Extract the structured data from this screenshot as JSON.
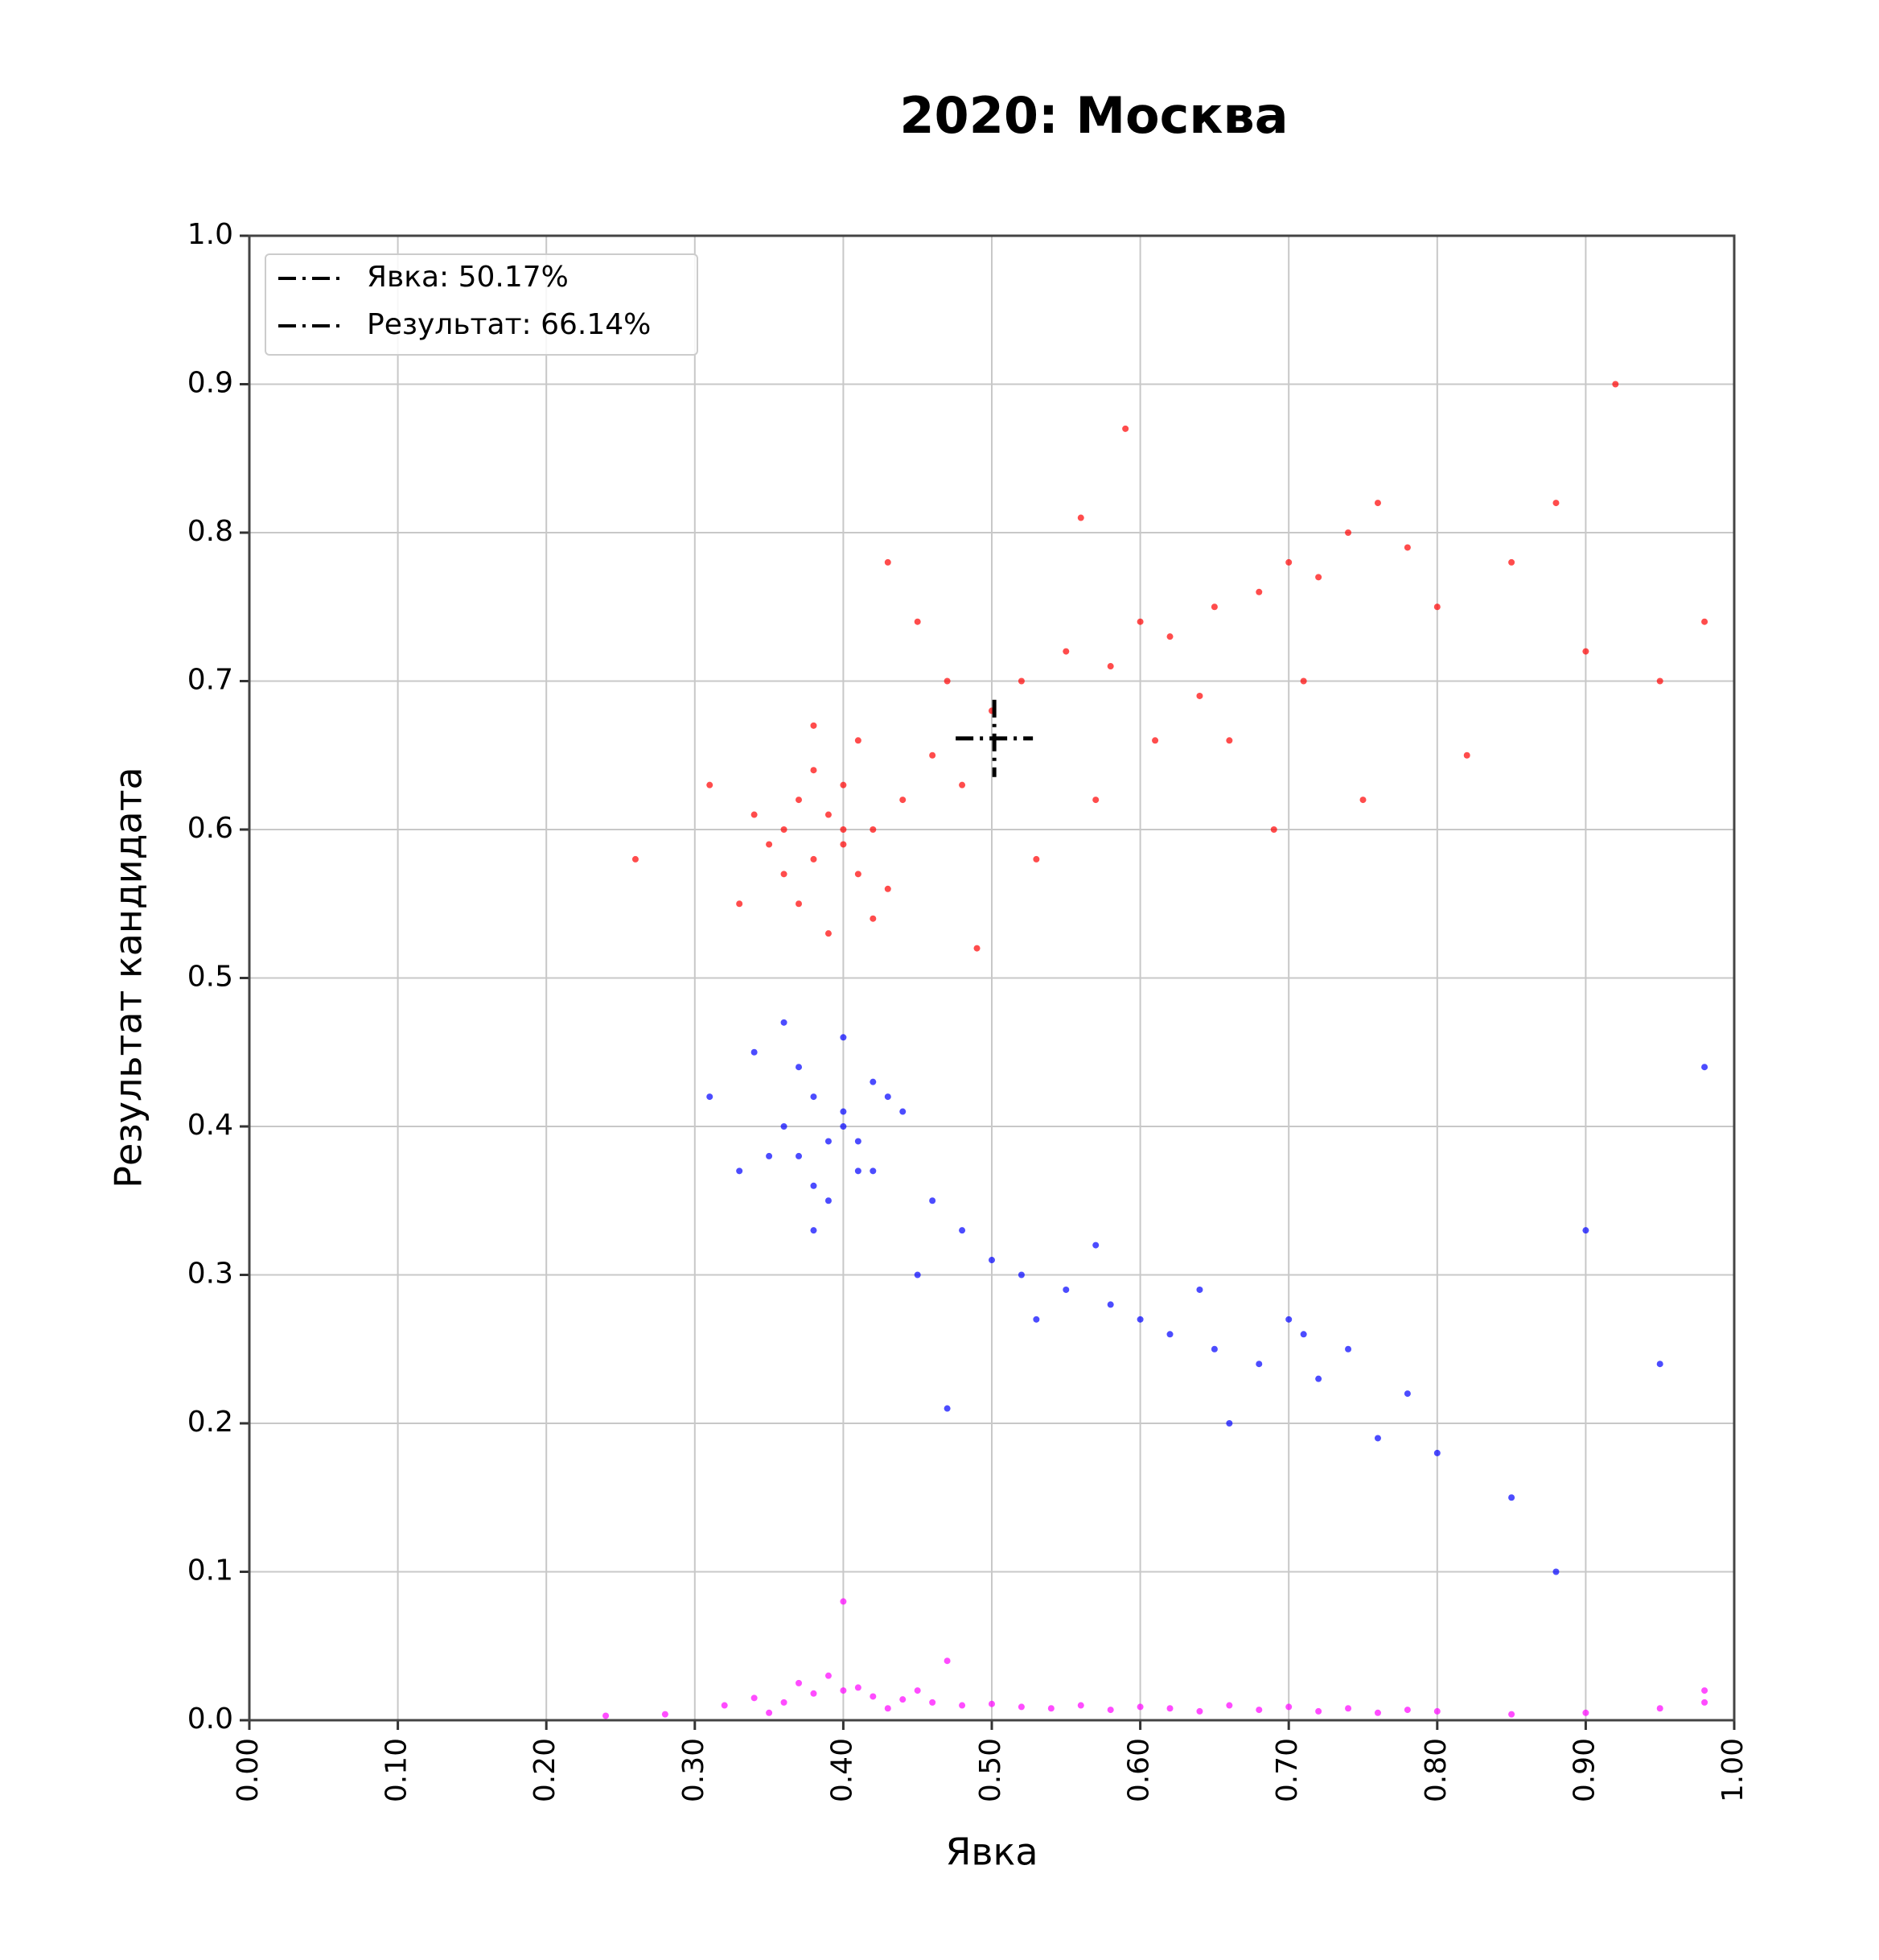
{
  "chart_data": {
    "type": "scatter",
    "title": "2020: Москва",
    "x_label": "Явка",
    "y_label": "Результат кандидата",
    "xlim": [
      0,
      1
    ],
    "ylim": [
      0,
      1
    ],
    "xticks": [
      {
        "value": 0,
        "label": "0.00"
      },
      {
        "value": 0.1,
        "label": "0.10"
      },
      {
        "value": 0.2,
        "label": "0.20"
      },
      {
        "value": 0.3,
        "label": "0.30"
      },
      {
        "value": 0.4,
        "label": "0.40"
      },
      {
        "value": 0.5,
        "label": "0.50"
      },
      {
        "value": 0.6,
        "label": "0.60"
      },
      {
        "value": 0.7,
        "label": "0.70"
      },
      {
        "value": 0.8,
        "label": "0.80"
      },
      {
        "value": 0.9,
        "label": "0.90"
      },
      {
        "value": 1,
        "label": "1.00"
      }
    ],
    "yticks": [
      {
        "value": 0,
        "label": "0.0"
      },
      0.1,
      0.2,
      0.3,
      0.4,
      0.5,
      0.6,
      0.7,
      0.8,
      0.9,
      {
        "value": 1,
        "label": "1.0"
      }
    ],
    "grid": true,
    "legend": "upper left",
    "reference": {
      "x": 0.5017,
      "y": 0.6614,
      "color": "#000000",
      "labels": [
        "Явка: 50.17%",
        "Результат: 66.14%"
      ]
    },
    "series": [
      {
        "color": "#ff0000",
        "x": [
          0.36,
          0.37,
          0.38,
          0.39,
          0.4,
          0.41,
          0.42,
          0.38,
          0.37,
          0.4,
          0.43,
          0.35,
          0.34,
          0.39,
          0.41,
          0.44,
          0.36,
          0.38,
          0.42,
          0.4,
          0.46,
          0.48,
          0.5,
          0.52,
          0.55,
          0.58,
          0.6,
          0.62,
          0.65,
          0.68,
          0.7,
          0.72,
          0.74,
          0.76,
          0.78,
          0.64,
          0.57,
          0.53,
          0.47,
          0.45,
          0.33,
          0.31,
          0.66,
          0.71,
          0.8,
          0.85,
          0.9,
          0.95,
          0.98,
          0.88,
          0.69,
          0.61,
          0.56,
          0.49,
          0.43,
          0.82,
          0.92,
          0.26,
          0.59,
          0.75
        ],
        "values": [
          0.6,
          0.62,
          0.58,
          0.61,
          0.59,
          0.57,
          0.6,
          0.64,
          0.55,
          0.63,
          0.56,
          0.59,
          0.61,
          0.53,
          0.66,
          0.62,
          0.57,
          0.67,
          0.54,
          0.6,
          0.65,
          0.63,
          0.68,
          0.7,
          0.72,
          0.71,
          0.74,
          0.73,
          0.75,
          0.76,
          0.78,
          0.77,
          0.8,
          0.82,
          0.79,
          0.69,
          0.62,
          0.58,
          0.7,
          0.74,
          0.55,
          0.63,
          0.66,
          0.7,
          0.75,
          0.78,
          0.72,
          0.7,
          0.74,
          0.82,
          0.6,
          0.66,
          0.81,
          0.52,
          0.78,
          0.65,
          0.9,
          0.58,
          0.87,
          0.62
        ]
      },
      {
        "color": "#0000ff",
        "x": [
          0.36,
          0.37,
          0.38,
          0.39,
          0.4,
          0.41,
          0.42,
          0.38,
          0.37,
          0.4,
          0.43,
          0.35,
          0.34,
          0.39,
          0.41,
          0.44,
          0.36,
          0.38,
          0.42,
          0.4,
          0.46,
          0.48,
          0.5,
          0.52,
          0.55,
          0.58,
          0.6,
          0.62,
          0.65,
          0.68,
          0.7,
          0.72,
          0.74,
          0.76,
          0.78,
          0.64,
          0.57,
          0.53,
          0.47,
          0.45,
          0.33,
          0.31,
          0.66,
          0.71,
          0.8,
          0.85,
          0.9,
          0.95,
          0.98,
          0.88
        ],
        "values": [
          0.4,
          0.38,
          0.42,
          0.39,
          0.41,
          0.37,
          0.43,
          0.36,
          0.44,
          0.4,
          0.42,
          0.38,
          0.45,
          0.35,
          0.39,
          0.41,
          0.47,
          0.33,
          0.37,
          0.46,
          0.35,
          0.33,
          0.31,
          0.3,
          0.29,
          0.28,
          0.27,
          0.26,
          0.25,
          0.24,
          0.27,
          0.23,
          0.25,
          0.19,
          0.22,
          0.29,
          0.32,
          0.27,
          0.21,
          0.3,
          0.37,
          0.42,
          0.2,
          0.26,
          0.18,
          0.15,
          0.33,
          0.24,
          0.44,
          0.1
        ]
      },
      {
        "color": "#ff00ff",
        "x": [
          0.32,
          0.34,
          0.36,
          0.38,
          0.4,
          0.42,
          0.44,
          0.46,
          0.48,
          0.5,
          0.52,
          0.54,
          0.56,
          0.58,
          0.6,
          0.62,
          0.64,
          0.66,
          0.68,
          0.7,
          0.72,
          0.74,
          0.76,
          0.78,
          0.8,
          0.85,
          0.9,
          0.95,
          0.98,
          0.37,
          0.39,
          0.41,
          0.43,
          0.35,
          0.45,
          0.24,
          0.28,
          0.4,
          0.47,
          0.98
        ],
        "values": [
          0.01,
          0.015,
          0.012,
          0.018,
          0.02,
          0.016,
          0.014,
          0.012,
          0.01,
          0.011,
          0.009,
          0.008,
          0.01,
          0.007,
          0.009,
          0.008,
          0.006,
          0.01,
          0.007,
          0.009,
          0.006,
          0.008,
          0.005,
          0.007,
          0.006,
          0.004,
          0.005,
          0.008,
          0.012,
          0.025,
          0.03,
          0.022,
          0.008,
          0.005,
          0.02,
          0.003,
          0.004,
          0.08,
          0.04,
          0.02
        ]
      }
    ]
  }
}
